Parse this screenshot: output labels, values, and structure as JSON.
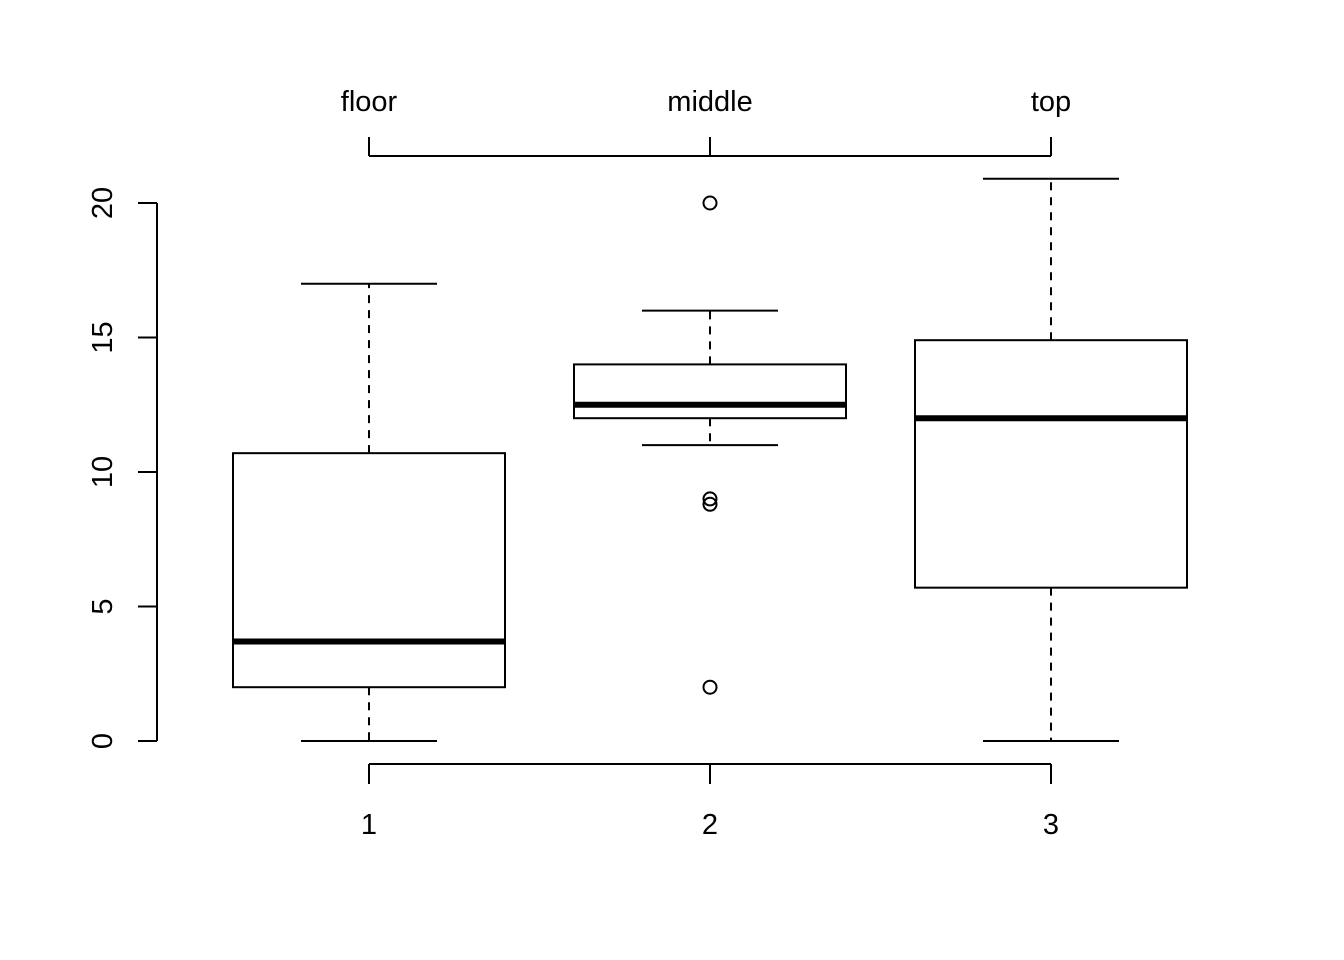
{
  "chart_data": {
    "type": "boxplot",
    "title": "",
    "xlabel": "",
    "ylabel": "",
    "ylim": [
      0,
      20
    ],
    "y_ticks": [
      0,
      5,
      10,
      15,
      20
    ],
    "categories": [
      "1",
      "2",
      "3"
    ],
    "top_axis_labels": [
      "floor",
      "middle",
      "top"
    ],
    "grid": false,
    "line_color": "#000000",
    "boxes": [
      {
        "category": "1",
        "whisker_low": 0,
        "q1": 2,
        "median": 3.7,
        "q3": 10.7,
        "whisker_high": 17,
        "outliers": []
      },
      {
        "category": "2",
        "whisker_low": 11,
        "q1": 12,
        "median": 12.5,
        "q3": 14,
        "whisker_high": 16,
        "outliers": [
          2,
          8.8,
          9,
          20
        ]
      },
      {
        "category": "3",
        "whisker_low": 0,
        "q1": 5.7,
        "median": 12,
        "q3": 14.9,
        "whisker_high": 20.9,
        "outliers": []
      }
    ]
  }
}
